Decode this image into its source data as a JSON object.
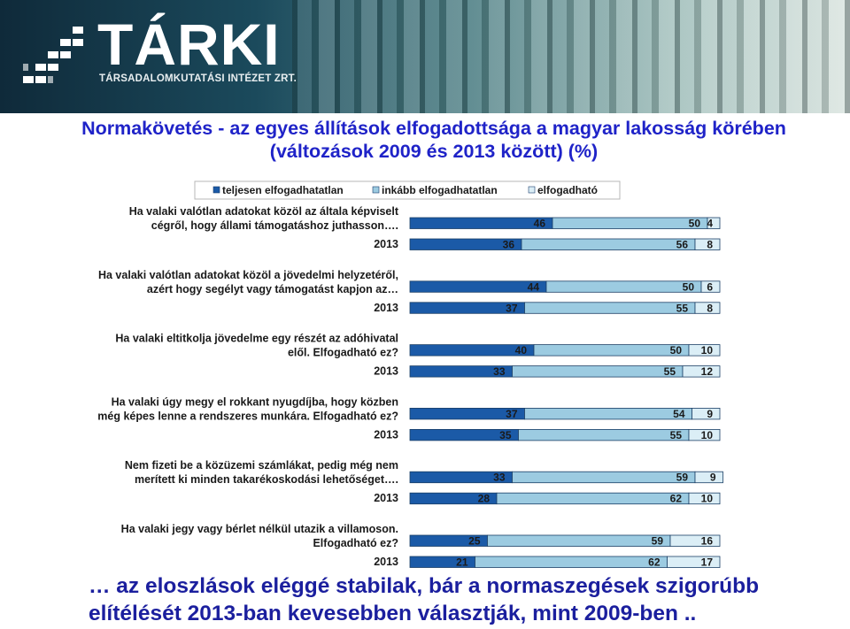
{
  "header": {
    "logo_text": "TÁRKI",
    "logo_subtitle": "TÁRSADALOMKUTATÁSI INTÉZET ZRT."
  },
  "title": {
    "line1": "Normakövetés - az egyes állítások elfogadottsága a magyar lakosság körében",
    "line2": "(változások 2009 és 2013 között) (%)"
  },
  "colors": {
    "teljesen": "#1b5aa7",
    "inkabb": "#9ccbe1",
    "elfogadhato": "#dbeef6"
  },
  "chart_data": {
    "type": "bar",
    "stacked": true,
    "orientation": "horizontal",
    "xlim": [
      0,
      100
    ],
    "legend_position": "top",
    "series": [
      {
        "name": "teljesen elfogadhatatlan",
        "color": "#1b5aa7"
      },
      {
        "name": "inkább elfogadhatatlan",
        "color": "#9ccbe1"
      },
      {
        "name": "elfogadható",
        "color": "#dbeef6"
      }
    ],
    "groups": [
      {
        "label_lines": [
          "Ha valaki valótlan adatokat közöl az általa képviselt",
          "cégről, hogy állami támogatáshoz juthasson…."
        ],
        "rows": [
          {
            "year": "",
            "values": [
              46,
              50,
              4
            ]
          },
          {
            "year": "2013",
            "values": [
              36,
              56,
              8
            ]
          }
        ]
      },
      {
        "label_lines": [
          "Ha valaki valótlan adatokat közöl a jövedelmi helyzetéről,",
          "azért hogy segélyt vagy támogatást kapjon az…"
        ],
        "rows": [
          {
            "year": "",
            "values": [
              44,
              50,
              6
            ]
          },
          {
            "year": "2013",
            "values": [
              37,
              55,
              8
            ]
          }
        ]
      },
      {
        "label_lines": [
          "Ha valaki eltitkolja jövedelme egy részét az adóhivatal",
          "elől. Elfogadható ez?"
        ],
        "rows": [
          {
            "year": "",
            "values": [
              40,
              50,
              10
            ]
          },
          {
            "year": "2013",
            "values": [
              33,
              55,
              12
            ]
          }
        ]
      },
      {
        "label_lines": [
          "Ha valaki úgy megy el rokkant nyugdíjba, hogy közben",
          "még képes lenne a rendszeres munkára. Elfogadható ez?"
        ],
        "rows": [
          {
            "year": "",
            "values": [
              37,
              54,
              9
            ]
          },
          {
            "year": "2013",
            "values": [
              35,
              55,
              10
            ]
          }
        ]
      },
      {
        "label_lines": [
          "Nem fizeti be a közüzemi számlákat, pedig még nem",
          "merített ki minden takarékoskodási lehetőséget…."
        ],
        "rows": [
          {
            "year": "",
            "values": [
              33,
              59,
              9
            ]
          },
          {
            "year": "2013",
            "values": [
              28,
              62,
              10
            ]
          }
        ]
      },
      {
        "label_lines": [
          "Ha valaki jegy vagy bérlet nélkül utazik a villamoson.",
          "Elfogadható ez?"
        ],
        "rows": [
          {
            "year": "",
            "values": [
              25,
              59,
              16
            ]
          },
          {
            "year": "2013",
            "values": [
              21,
              62,
              17
            ]
          }
        ]
      }
    ]
  },
  "footer": {
    "line1": "… az eloszlások eléggé stabilak, bár a normaszegések szigorúbb",
    "line2": "elítélését 2013-ban kevesebben választják, mint 2009-ben .."
  }
}
